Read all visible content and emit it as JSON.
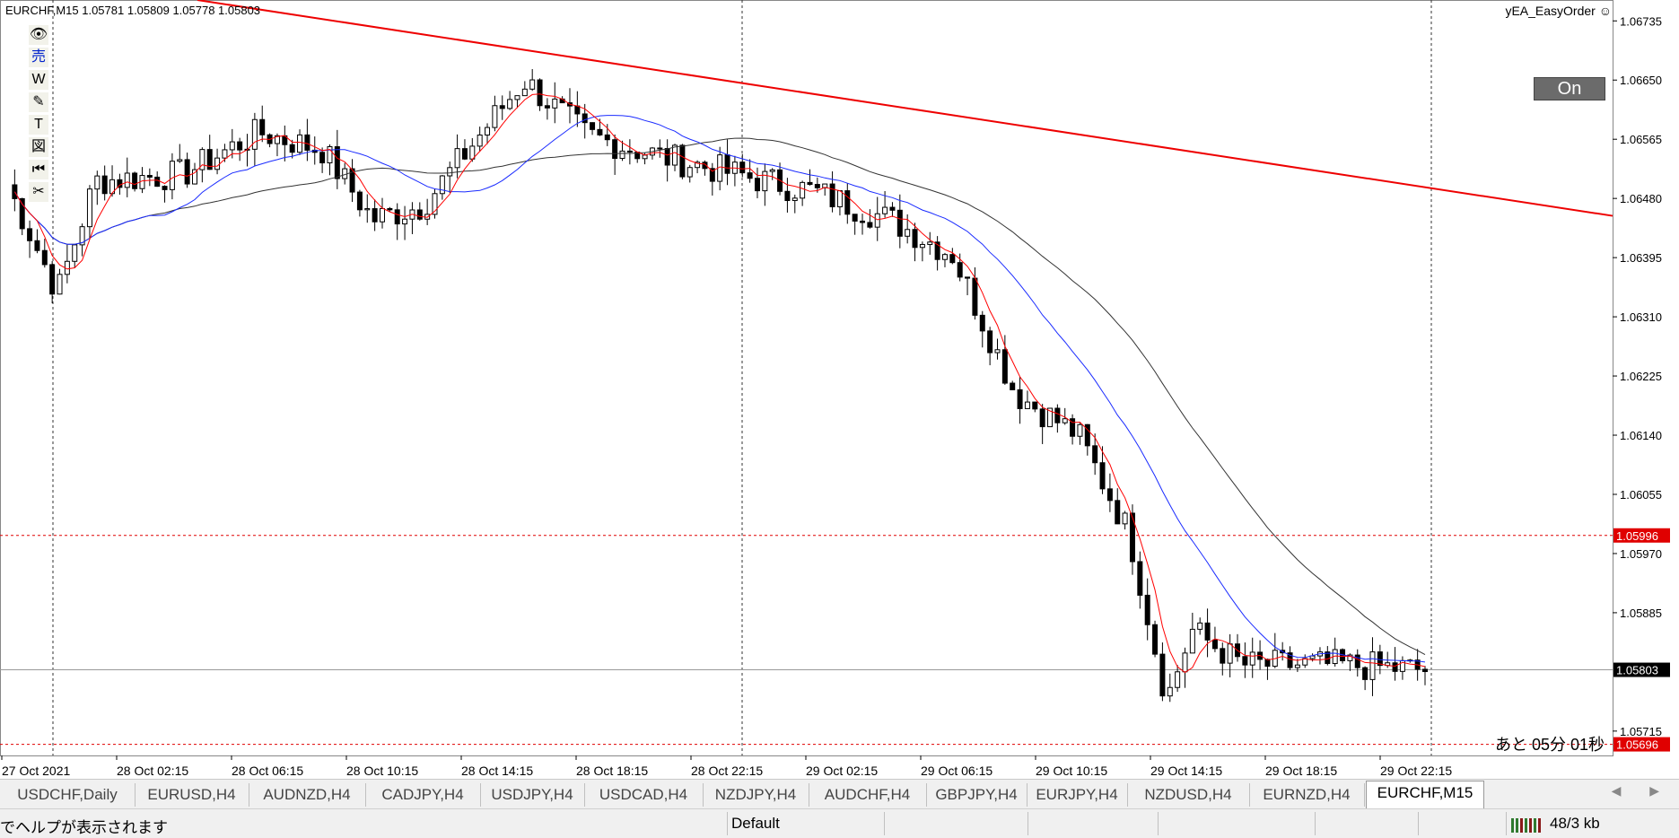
{
  "window": {
    "symbol_title": "EURCHF,M15  1.05781 1.05809 1.05778 1.05803",
    "ea_label": "yEA_EasyOrder ☺",
    "on_button": "On",
    "countdown": "あと 05分 01秒"
  },
  "toolbar": {
    "tools": [
      {
        "name": "eye-icon",
        "glyph": "👁"
      },
      {
        "name": "sell-icon",
        "glyph": "売"
      },
      {
        "name": "w-icon",
        "glyph": "W"
      },
      {
        "name": "pencil-icon",
        "glyph": "✎"
      },
      {
        "name": "text-icon",
        "glyph": "T"
      },
      {
        "name": "figure-icon",
        "glyph": "図"
      },
      {
        "name": "rewind-icon",
        "glyph": "⏮"
      },
      {
        "name": "scissors-icon",
        "glyph": "✂"
      }
    ]
  },
  "chart_data": {
    "type": "candlestick",
    "symbol": "EURCHF",
    "timeframe": "M15",
    "ylim": [
      1.0568,
      1.06765
    ],
    "price_ticks": [
      "1.06735",
      "1.06650",
      "1.06565",
      "1.06480",
      "1.06395",
      "1.06310",
      "1.06225",
      "1.06140",
      "1.06055",
      "1.05970",
      "1.05885",
      "1.05715"
    ],
    "price_labels": [
      {
        "text": "1.05996",
        "value": 1.05996,
        "color": "#e00000"
      },
      {
        "text": "1.05803",
        "value": 1.05803,
        "color": "#000000"
      },
      {
        "text": "1.05696",
        "value": 1.05696,
        "color": "#e00000"
      }
    ],
    "time_labels": [
      "27 Oct 2021",
      "28 Oct 02:15",
      "28 Oct 06:15",
      "28 Oct 10:15",
      "28 Oct 14:15",
      "28 Oct 18:15",
      "28 Oct 22:15",
      "29 Oct 02:15",
      "29 Oct 06:15",
      "29 Oct 10:15",
      "29 Oct 14:15",
      "29 Oct 18:15",
      "29 Oct 22:15"
    ],
    "horizontal_lines": [
      1.05996,
      1.05803,
      1.05696
    ],
    "trendline": {
      "from": 1.06765,
      "to": 1.06455,
      "color": "#ee0000"
    },
    "ma_colors": {
      "fast": "#ff0000",
      "mid": "#1a2bff",
      "slow": "#333333"
    },
    "colors": {
      "bull": "#ffffff",
      "bear": "#000000",
      "outline": "#000000"
    }
  },
  "tabs": [
    {
      "label": "USDCHF,Daily"
    },
    {
      "label": "EURUSD,H4"
    },
    {
      "label": "AUDNZD,H4"
    },
    {
      "label": "CADJPY,H4"
    },
    {
      "label": "USDJPY,H4"
    },
    {
      "label": "USDCAD,H4"
    },
    {
      "label": "NZDJPY,H4"
    },
    {
      "label": "AUDCHF,H4"
    },
    {
      "label": "GBPJPY,H4"
    },
    {
      "label": "EURJPY,H4"
    },
    {
      "label": "NZDUSD,H4"
    },
    {
      "label": "EURNZD,H4"
    },
    {
      "label": "EURCHF,M15"
    }
  ],
  "tab_nav": "◀ ▶",
  "status": {
    "help": "でヘルプが表示されます",
    "profile": "Default",
    "traffic": "48/3 kb"
  }
}
